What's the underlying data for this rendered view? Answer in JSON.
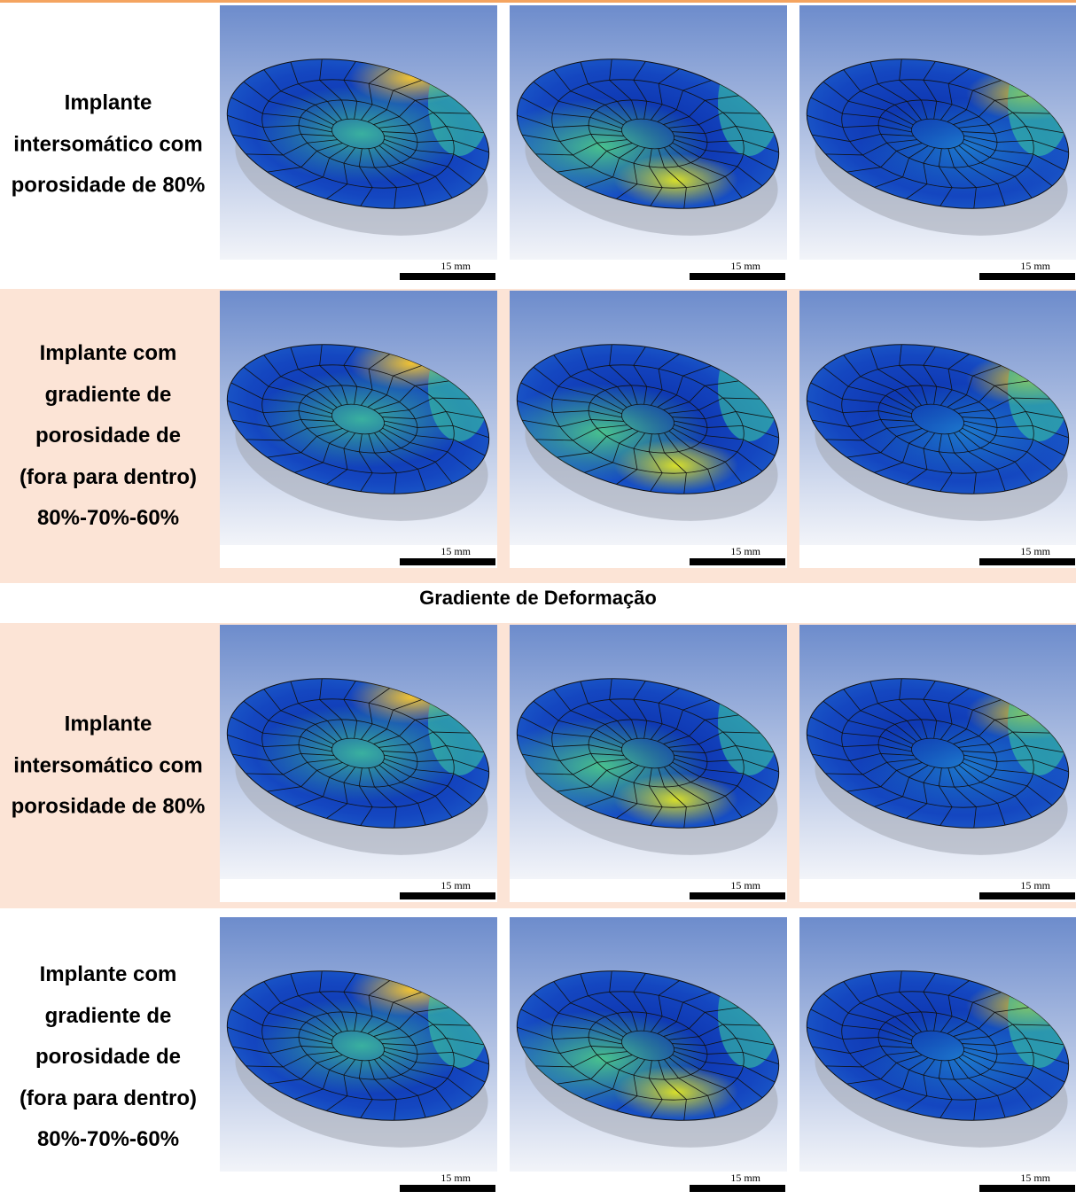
{
  "groups": [
    {
      "rows": [
        {
          "label": "Implante intersomático com porosidade de 80%",
          "scale_labels": [
            "15 mm",
            "15 mm",
            "15 mm"
          ]
        },
        {
          "label": "Implante com gradiente de porosidade de (fora para dentro) 80%-70%-60%",
          "scale_labels": [
            "15 mm",
            "15 mm",
            "15 mm"
          ]
        }
      ]
    },
    {
      "title": "Gradiente de Deformação",
      "rows": [
        {
          "label": "Implante intersomático com porosidade de 80%",
          "scale_labels": [
            "15 mm",
            "15 mm",
            "15 mm"
          ]
        },
        {
          "label": "Implante com gradiente de porosidade de (fora para dentro) 80%-70%-60%",
          "scale_labels": [
            "15 mm",
            "15 mm",
            "15 mm"
          ]
        }
      ]
    }
  ]
}
